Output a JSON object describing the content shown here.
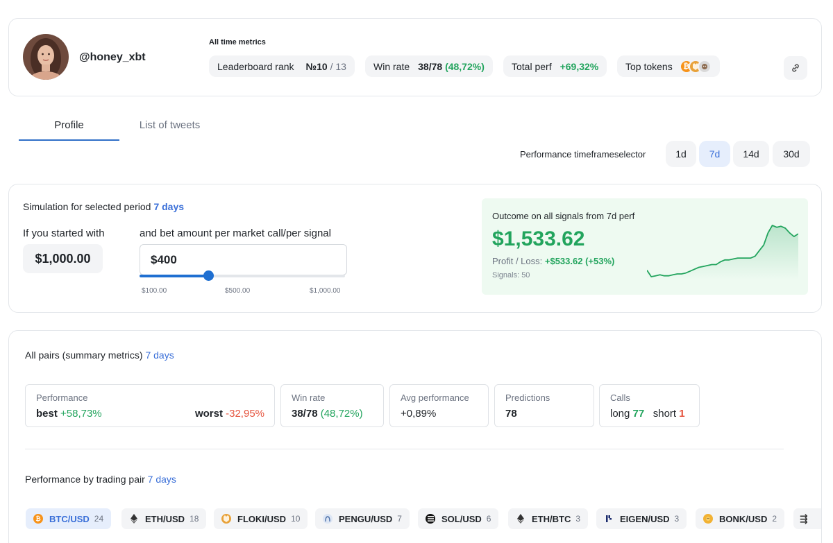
{
  "profile": {
    "username": "@honey_xbt",
    "metrics_title": "All time metrics",
    "leaderboard": {
      "label": "Leaderboard rank",
      "value": "№10",
      "total": "/ 13"
    },
    "win_rate": {
      "label": "Win rate",
      "value": "38/78",
      "pct": "(48,72%)"
    },
    "total_perf": {
      "label": "Total perf",
      "value": "+69,32%"
    },
    "top_tokens": {
      "label": "Top tokens",
      "icons": [
        "bitcoin-icon",
        "shiba-icon",
        "floki-icon"
      ]
    }
  },
  "tabs": [
    {
      "label": "Profile",
      "active": true
    },
    {
      "label": "List of tweets",
      "active": false
    }
  ],
  "timeframe": {
    "label": "Performance timeframeselector",
    "options": [
      "1d",
      "7d",
      "14d",
      "30d"
    ],
    "selected": "7d"
  },
  "simulation": {
    "title": "Simulation for selected period",
    "period": "7 days",
    "start_label": "If you started with",
    "start_value": "$1,000.00",
    "bet_label": "and bet amount per market call/per signal",
    "bet_value": "$400",
    "slider_min": "$100.00",
    "slider_mid": "$500.00",
    "slider_max": "$1,000.00",
    "slider_fraction": 0.333,
    "outcome_title": "Outcome on all signals from 7d perf",
    "outcome_amount": "$1,533.62",
    "pl_label": "Profit / Loss:",
    "pl_value": "+$533.62 (+53%)",
    "signals": "Signals: 50",
    "sparkline": [
      12,
      5,
      6,
      7,
      6,
      6,
      7,
      8,
      8,
      9,
      11,
      13,
      15,
      16,
      17,
      18,
      18,
      21,
      23,
      23,
      24,
      25,
      25,
      25,
      25,
      27,
      33,
      39,
      52,
      60,
      58,
      59,
      57,
      52,
      48,
      51
    ],
    "accent": "#22a45d"
  },
  "pairs": {
    "title": "All pairs (summary metrics)",
    "period": "7 days",
    "performance": {
      "label": "Performance",
      "best_label": "best",
      "best": "+58,73%",
      "worst_label": "worst",
      "worst": "-32,95%"
    },
    "win_rate": {
      "label": "Win rate",
      "value": "38/78",
      "pct": "(48,72%)"
    },
    "avg_perf": {
      "label": "Avg performance",
      "value": "+0,89%"
    },
    "predictions": {
      "label": "Predictions",
      "value": "78"
    },
    "calls": {
      "label": "Calls",
      "long_label": "long",
      "long": "77",
      "short_label": "short",
      "short": "1"
    },
    "by_pair_title": "Performance by trading pair",
    "by_pair_period": "7 days",
    "chips": [
      {
        "label": "BTC/USD",
        "count": "24",
        "icon": "bitcoin-icon",
        "active": true
      },
      {
        "label": "ETH/USD",
        "count": "18",
        "icon": "ethereum-icon",
        "active": false
      },
      {
        "label": "FLOKI/USD",
        "count": "10",
        "icon": "floki-icon",
        "active": false
      },
      {
        "label": "PENGU/USD",
        "count": "7",
        "icon": "pengu-icon",
        "active": false
      },
      {
        "label": "SOL/USD",
        "count": "6",
        "icon": "solana-icon",
        "active": false
      },
      {
        "label": "ETH/BTC",
        "count": "3",
        "icon": "ethereum-icon",
        "active": false
      },
      {
        "label": "EIGEN/USD",
        "count": "3",
        "icon": "eigen-icon",
        "active": false
      },
      {
        "label": "BONK/USD",
        "count": "2",
        "icon": "bonk-icon",
        "active": false
      }
    ]
  }
}
